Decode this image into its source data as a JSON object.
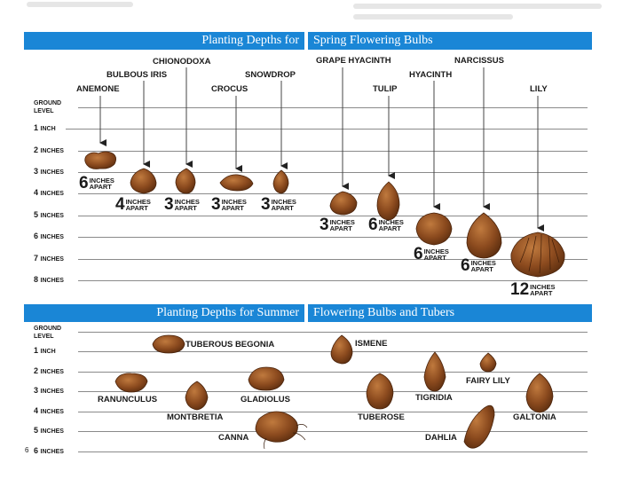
{
  "spring": {
    "title_left": "Planting Depths for",
    "title_right": "Spring Flowering Bulbs",
    "rows": [
      {
        "label": "GROUND",
        "label2": "LEVEL"
      },
      {
        "label": "1",
        "unit": "INCH"
      },
      {
        "label": "2",
        "unit": "INCHES"
      },
      {
        "label": "3",
        "unit": "INCHES"
      },
      {
        "label": "4",
        "unit": "INCHES"
      },
      {
        "label": "5",
        "unit": "INCHES"
      },
      {
        "label": "6",
        "unit": "INCHES"
      },
      {
        "label": "7",
        "unit": "INCHES"
      },
      {
        "label": "8",
        "unit": "INCHES"
      }
    ],
    "plants": [
      {
        "name": "ANEMONE",
        "spacing": "6",
        "spacing_unit1": "INCHES",
        "spacing_unit2": "APART"
      },
      {
        "name": "BULBOUS IRIS",
        "spacing": "4",
        "spacing_unit1": "INCHES",
        "spacing_unit2": "APART"
      },
      {
        "name": "CHIONODOXA",
        "spacing": "3",
        "spacing_unit1": "INCHES",
        "spacing_unit2": "APART"
      },
      {
        "name": "CROCUS",
        "spacing": "3",
        "spacing_unit1": "INCHES",
        "spacing_unit2": "APART"
      },
      {
        "name": "SNOWDROP",
        "spacing": "3",
        "spacing_unit1": "INCHES",
        "spacing_unit2": "APART"
      },
      {
        "name": "GRAPE HYACINTH",
        "spacing": "3",
        "spacing_unit1": "INCHES",
        "spacing_unit2": "APART"
      },
      {
        "name": "TULIP",
        "spacing": "6",
        "spacing_unit1": "INCHES",
        "spacing_unit2": "APART"
      },
      {
        "name": "HYACINTH",
        "spacing": "6",
        "spacing_unit1": "INCHES",
        "spacing_unit2": "APART"
      },
      {
        "name": "NARCISSUS",
        "spacing": "6",
        "spacing_unit1": "INCHES",
        "spacing_unit2": "APART"
      },
      {
        "name": "LILY",
        "spacing": "12",
        "spacing_unit1": "INCHES",
        "spacing_unit2": "APART"
      }
    ]
  },
  "summer": {
    "title_left": "Planting Depths for Summer",
    "title_right": "Flowering Bulbs and Tubers",
    "rows": [
      {
        "label": "GROUND",
        "label2": "LEVEL"
      },
      {
        "label": "1",
        "unit": "INCH"
      },
      {
        "label": "2",
        "unit": "INCHES"
      },
      {
        "label": "3",
        "unit": "INCHES"
      },
      {
        "label": "4",
        "unit": "INCHES"
      },
      {
        "label": "5",
        "unit": "INCHES"
      },
      {
        "label": "6",
        "unit": "INCHES"
      }
    ],
    "plants": [
      {
        "name": "TUBEROUS BEGONIA"
      },
      {
        "name": "RANUNCULUS"
      },
      {
        "name": "MONTBRETIA"
      },
      {
        "name": "GLADIOLUS"
      },
      {
        "name": "CANNA"
      },
      {
        "name": "ISMENE"
      },
      {
        "name": "TUBEROSE"
      },
      {
        "name": "TIGRIDIA"
      },
      {
        "name": "FAIRY LILY"
      },
      {
        "name": "DAHLIA"
      },
      {
        "name": "GALTONIA"
      }
    ]
  },
  "page_number": "6",
  "colors": {
    "banner": "#1a86d6",
    "bulb": "#8b4a1e",
    "bulb_dark": "#5e2f10",
    "bulb_light": "#b06a35"
  }
}
